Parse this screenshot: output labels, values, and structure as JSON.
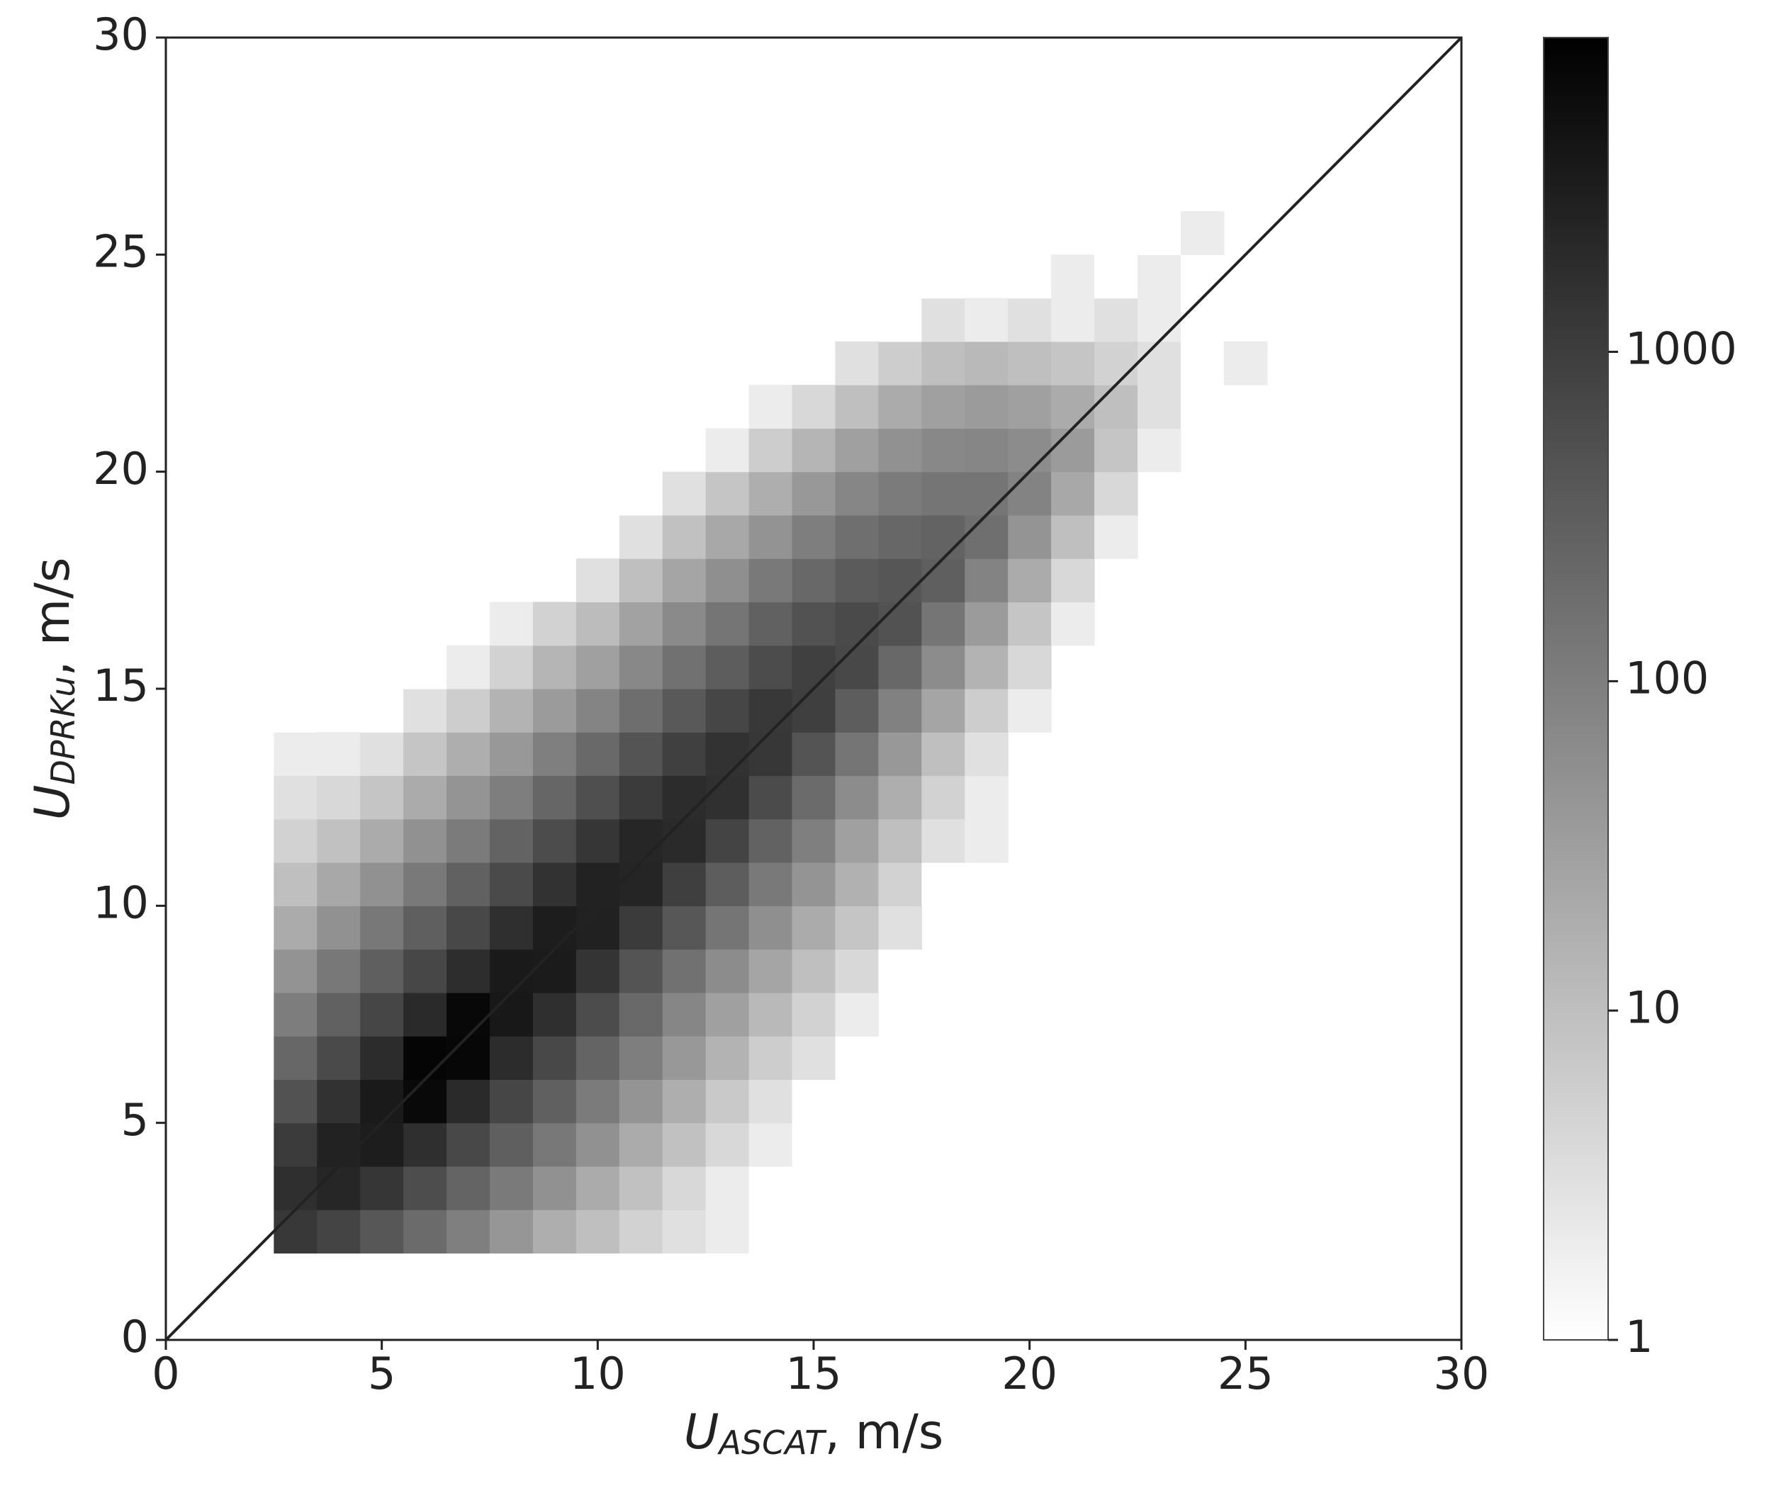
{
  "chart_data": {
    "type": "hist2d",
    "x_label": [
      "U",
      "ASCAT",
      ", m/s"
    ],
    "y_label": [
      "U",
      "DPRKu",
      ", m/s"
    ],
    "xlim": [
      0,
      30
    ],
    "ylim": [
      0,
      30
    ],
    "xticks": [
      0,
      5,
      10,
      15,
      20,
      25,
      30
    ],
    "yticks": [
      0,
      5,
      10,
      15,
      20,
      25,
      30
    ],
    "xbins": [
      2.5,
      3.5,
      4.5,
      5.5,
      6.5,
      7.5,
      8.5,
      9.5,
      10.5,
      11.5,
      12.5,
      13.5,
      14.5,
      15.5,
      16.5,
      17.5,
      18.5,
      19.5,
      20.5,
      21.5,
      22.5,
      23.5,
      24.5,
      25.5
    ],
    "ybins": [
      2,
      3,
      4,
      5,
      6,
      7,
      8,
      9,
      10,
      11,
      12,
      13,
      14,
      15,
      16,
      17,
      18,
      19,
      20,
      21,
      22,
      23,
      24,
      25,
      26
    ],
    "counts": [
      [
        1200,
        800,
        400,
        200,
        95,
        42,
        18,
        10,
        5,
        3,
        2,
        1,
        1,
        null,
        null,
        null,
        null,
        null,
        null,
        null,
        null,
        null,
        null
      ],
      [
        1700,
        2300,
        1300,
        570,
        250,
        115,
        50,
        20,
        9,
        4,
        2,
        1,
        1,
        null,
        null,
        1,
        null,
        null,
        null,
        null,
        null,
        null,
        null
      ],
      [
        1080,
        2700,
        3200,
        1700,
        690,
        300,
        125,
        50,
        20,
        9,
        4,
        2,
        1,
        null,
        null,
        null,
        null,
        null,
        null,
        null,
        null,
        null,
        null
      ],
      [
        480,
        1500,
        3600,
        6500,
        2000,
        750,
        290,
        110,
        45,
        18,
        7,
        3,
        1,
        1,
        null,
        null,
        null,
        null,
        null,
        null,
        null,
        null,
        null
      ],
      [
        230,
        630,
        1840,
        7500,
        7000,
        1900,
        680,
        250,
        100,
        40,
        15,
        6,
        3,
        1,
        null,
        null,
        null,
        null,
        null,
        null,
        null,
        null,
        null
      ],
      [
        105,
        280,
        750,
        2000,
        6800,
        3800,
        1700,
        600,
        210,
        75,
        30,
        12,
        5,
        2,
        null,
        null,
        null,
        null,
        null,
        null,
        null,
        null,
        null
      ],
      [
        48,
        125,
        300,
        720,
        1800,
        3600,
        3400,
        1400,
        450,
        160,
        60,
        25,
        10,
        4,
        1,
        null,
        null,
        null,
        null,
        null,
        null,
        null,
        null
      ],
      [
        20,
        50,
        125,
        300,
        700,
        1700,
        3200,
        2800,
        1100,
        400,
        140,
        55,
        20,
        8,
        3,
        null,
        null,
        null,
        null,
        null,
        null,
        null,
        null
      ],
      [
        10,
        22,
        50,
        120,
        280,
        650,
        1500,
        2700,
        2400,
        950,
        330,
        120,
        45,
        16,
        5,
        1,
        null,
        null,
        null,
        null,
        null,
        null,
        null
      ],
      [
        5,
        9,
        20,
        50,
        110,
        260,
        600,
        1300,
        2300,
        2000,
        800,
        270,
        95,
        30,
        10,
        3,
        2,
        null,
        null,
        null,
        null,
        null,
        null
      ],
      [
        3,
        4,
        8,
        20,
        45,
        100,
        240,
        530,
        1100,
        1900,
        1600,
        620,
        200,
        60,
        18,
        5,
        2,
        null,
        null,
        null,
        null,
        null,
        null
      ],
      [
        2,
        2,
        3,
        8,
        18,
        40,
        95,
        210,
        450,
        900,
        1500,
        1250,
        450,
        140,
        40,
        10,
        3,
        null,
        null,
        null,
        null,
        null,
        null
      ],
      [
        1,
        null,
        1,
        3,
        6,
        15,
        35,
        80,
        180,
        380,
        750,
        1200,
        950,
        330,
        90,
        25,
        6,
        2,
        null,
        null,
        null,
        null,
        null
      ],
      [
        null,
        null,
        null,
        1,
        2,
        5,
        14,
        30,
        70,
        160,
        330,
        600,
        900,
        700,
        220,
        60,
        15,
        4,
        null,
        null,
        null,
        null,
        null
      ],
      [
        1,
        null,
        null,
        null,
        null,
        2,
        5,
        11,
        28,
        65,
        140,
        280,
        480,
        650,
        480,
        140,
        35,
        8,
        2,
        null,
        null,
        null,
        null
      ],
      [
        null,
        null,
        null,
        null,
        null,
        null,
        null,
        3,
        10,
        25,
        55,
        120,
        220,
        350,
        420,
        300,
        85,
        20,
        4,
        null,
        null,
        null,
        null
      ],
      [
        null,
        null,
        null,
        null,
        null,
        null,
        null,
        null,
        3,
        9,
        22,
        48,
        100,
        170,
        230,
        260,
        170,
        45,
        10,
        2,
        null,
        null,
        null
      ],
      [
        null,
        null,
        null,
        null,
        null,
        null,
        null,
        null,
        1,
        3,
        8,
        18,
        40,
        75,
        110,
        140,
        140,
        85,
        22,
        4,
        null,
        null,
        null
      ],
      [
        null,
        null,
        null,
        null,
        null,
        null,
        null,
        null,
        null,
        null,
        2,
        6,
        14,
        30,
        50,
        70,
        75,
        60,
        35,
        8,
        2,
        null,
        null
      ],
      [
        null,
        null,
        null,
        null,
        null,
        null,
        null,
        null,
        null,
        null,
        null,
        2,
        4,
        10,
        20,
        30,
        35,
        30,
        20,
        10,
        3,
        1,
        null
      ],
      [
        null,
        null,
        null,
        null,
        null,
        null,
        null,
        null,
        null,
        null,
        null,
        null,
        null,
        3,
        6,
        10,
        12,
        10,
        8,
        5,
        3,
        1,
        2
      ],
      [
        null,
        null,
        null,
        null,
        null,
        null,
        null,
        null,
        null,
        null,
        null,
        null,
        null,
        null,
        1,
        3,
        2,
        3,
        2,
        3,
        2,
        1,
        null
      ],
      [
        null,
        null,
        null,
        null,
        null,
        null,
        null,
        null,
        null,
        null,
        null,
        null,
        null,
        null,
        null,
        1,
        null,
        1,
        2,
        1,
        2,
        1,
        1
      ],
      [
        null,
        null,
        null,
        null,
        null,
        null,
        null,
        null,
        null,
        null,
        null,
        null,
        null,
        null,
        null,
        null,
        null,
        null,
        null,
        1,
        1,
        2,
        null
      ]
    ],
    "cmap_colors": [
      "#ffffff",
      "#000000"
    ],
    "clim": [
      1,
      9000
    ],
    "clog": true,
    "cticks": [
      1,
      10,
      100,
      1000
    ],
    "line": {
      "x": [
        0,
        30
      ],
      "y": [
        0,
        30
      ],
      "color": "#222222"
    }
  }
}
